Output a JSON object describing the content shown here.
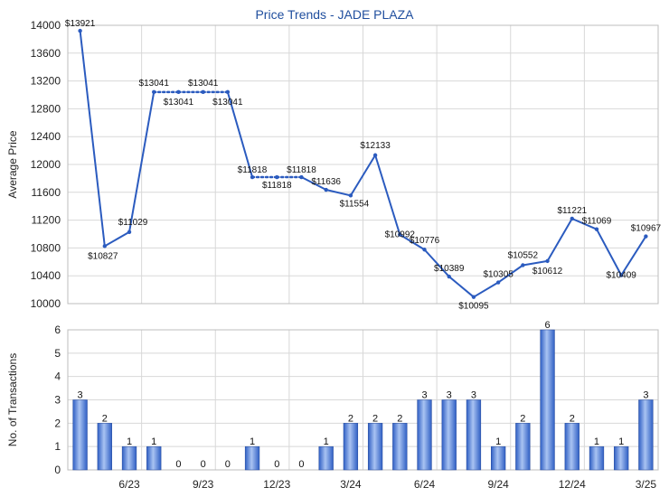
{
  "chart_data": [
    {
      "type": "line",
      "title": "Price Trends - JADE PLAZA",
      "ylabel": "Average Price",
      "ylim": [
        10000,
        14000
      ],
      "yticks": [
        10000,
        10400,
        10800,
        11200,
        11600,
        12000,
        12400,
        12800,
        13200,
        13600,
        14000
      ],
      "grid": true,
      "colors": {
        "line": "#2b5bbf"
      },
      "points": [
        {
          "x": 0,
          "y": 13921,
          "label": "$13921"
        },
        {
          "x": 1,
          "y": 10827,
          "label": "$10827"
        },
        {
          "x": 2,
          "y": 11029,
          "label": "$11029"
        },
        {
          "x": 3,
          "y": 13041,
          "label": "$13041"
        },
        {
          "x": 4,
          "y": 13041,
          "label": "$13041",
          "interpolated": true
        },
        {
          "x": 5,
          "y": 13041,
          "label": "$13041",
          "interpolated": true
        },
        {
          "x": 6,
          "y": 13041,
          "label": "$13041",
          "interpolated": true
        },
        {
          "x": 7,
          "y": 11818,
          "label": "$11818"
        },
        {
          "x": 8,
          "y": 11818,
          "label": "$11818",
          "interpolated": true
        },
        {
          "x": 9,
          "y": 11818,
          "label": "$11818",
          "interpolated": true
        },
        {
          "x": 10,
          "y": 11636,
          "label": "$11636"
        },
        {
          "x": 11,
          "y": 11554,
          "label": "$11554"
        },
        {
          "x": 12,
          "y": 12133,
          "label": "$12133"
        },
        {
          "x": 13,
          "y": 10992,
          "label": "$10992"
        },
        {
          "x": 14,
          "y": 10776,
          "label": "$10776"
        },
        {
          "x": 15,
          "y": 10389,
          "label": "$10389"
        },
        {
          "x": 16,
          "y": 10095,
          "label": "$10095"
        },
        {
          "x": 17,
          "y": 10305,
          "label": "$10305"
        },
        {
          "x": 18,
          "y": 10552,
          "label": "$10552"
        },
        {
          "x": 19,
          "y": 10612,
          "label": "$10612"
        },
        {
          "x": 20,
          "y": 11221,
          "label": "$11221"
        },
        {
          "x": 21,
          "y": 11069,
          "label": "$11069"
        },
        {
          "x": 22,
          "y": 10409,
          "label": "$10409"
        },
        {
          "x": 23,
          "y": 10967,
          "label": "$10967"
        }
      ]
    },
    {
      "type": "bar",
      "ylabel": "No. of Transactions",
      "ylim": [
        0,
        6
      ],
      "yticks": [
        0,
        1,
        2,
        3,
        4,
        5,
        6
      ],
      "grid": true,
      "colors": {
        "bar": "#2f5fc4",
        "bar_highlight": "#a9c3f2"
      },
      "values": [
        3,
        2,
        1,
        1,
        0,
        0,
        0,
        1,
        0,
        0,
        1,
        2,
        2,
        2,
        3,
        3,
        3,
        1,
        2,
        6,
        2,
        1,
        1,
        3
      ],
      "xticks": [
        {
          "x": 2.5,
          "label": "6/23"
        },
        {
          "x": 5.5,
          "label": "9/23"
        },
        {
          "x": 8.5,
          "label": "12/23"
        },
        {
          "x": 11.5,
          "label": "3/24"
        },
        {
          "x": 14.5,
          "label": "6/24"
        },
        {
          "x": 17.5,
          "label": "9/24"
        },
        {
          "x": 20.5,
          "label": "12/24"
        },
        {
          "x": 23.5,
          "label": "3/25"
        }
      ]
    }
  ]
}
